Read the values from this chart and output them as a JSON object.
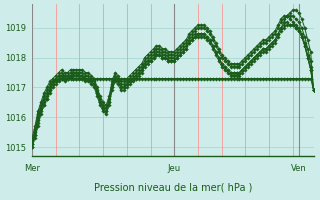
{
  "title": "Pression niveau de la mer( hPa )",
  "bg_color": "#ceecea",
  "grid_color_h": "#aad8d4",
  "grid_color_v": "#ff8888",
  "line_color": "#1a5c1a",
  "marker_color": "#1a5c1a",
  "ylim": [
    1014.7,
    1019.8
  ],
  "yticks": [
    1015,
    1016,
    1017,
    1018,
    1019
  ],
  "xlim": [
    0,
    96
  ],
  "day_positions": [
    0,
    48,
    90
  ],
  "day_labels": [
    "Mer",
    "Jeu",
    "Ven"
  ],
  "series": [
    [
      1015.0,
      1015.3,
      1015.7,
      1016.1,
      1016.4,
      1016.6,
      1016.9,
      1017.1,
      1017.2,
      1017.3,
      1017.3,
      1017.2,
      1017.3,
      1017.35,
      1017.3,
      1017.3,
      1017.3,
      1017.3,
      1017.3,
      1017.3,
      1017.3,
      1017.3,
      1017.3,
      1017.3,
      1017.3,
      1017.3,
      1017.3,
      1017.3,
      1017.3,
      1017.3,
      1017.3,
      1017.3,
      1017.3,
      1017.3,
      1017.3,
      1017.3,
      1017.3,
      1017.3,
      1017.3,
      1017.3,
      1017.3,
      1017.3,
      1017.3,
      1017.3,
      1017.3,
      1017.3,
      1017.3,
      1017.3,
      1017.3,
      1017.3,
      1017.3,
      1017.3,
      1017.3,
      1017.3,
      1017.3,
      1017.3,
      1017.3,
      1017.3,
      1017.3,
      1017.3,
      1017.3,
      1017.3,
      1017.3,
      1017.3,
      1017.3,
      1017.3,
      1017.3,
      1017.3,
      1017.3,
      1017.3,
      1017.3,
      1017.3,
      1017.3,
      1017.3,
      1017.3,
      1017.3,
      1017.3,
      1017.3,
      1017.3,
      1017.3,
      1017.3,
      1017.3,
      1017.3,
      1017.3,
      1017.3,
      1017.3,
      1017.3,
      1017.3,
      1017.3,
      1017.3,
      1017.3,
      1017.3,
      1017.3,
      1017.3,
      1017.3,
      1016.9
    ],
    [
      1015.1,
      1015.5,
      1016.0,
      1016.3,
      1016.6,
      1016.8,
      1017.0,
      1017.2,
      1017.3,
      1017.4,
      1017.4,
      1017.3,
      1017.4,
      1017.4,
      1017.5,
      1017.5,
      1017.4,
      1017.4,
      1017.3,
      1017.3,
      1017.2,
      1017.1,
      1016.8,
      1016.5,
      1016.3,
      1016.2,
      1016.5,
      1017.0,
      1017.3,
      1017.2,
      1017.0,
      1017.0,
      1017.1,
      1017.2,
      1017.3,
      1017.4,
      1017.5,
      1017.6,
      1017.8,
      1017.9,
      1017.9,
      1018.0,
      1018.1,
      1018.1,
      1018.0,
      1018.0,
      1017.9,
      1017.9,
      1017.9,
      1018.0,
      1018.1,
      1018.2,
      1018.3,
      1018.5,
      1018.6,
      1018.7,
      1018.8,
      1018.8,
      1018.8,
      1018.7,
      1018.6,
      1018.4,
      1018.2,
      1018.0,
      1017.8,
      1017.7,
      1017.6,
      1017.5,
      1017.5,
      1017.5,
      1017.5,
      1017.6,
      1017.7,
      1017.8,
      1017.9,
      1018.0,
      1018.1,
      1018.2,
      1018.3,
      1018.3,
      1018.4,
      1018.5,
      1018.6,
      1018.8,
      1019.0,
      1019.2,
      1019.4,
      1019.5,
      1019.6,
      1019.6,
      1019.5,
      1019.3,
      1019.0,
      1018.6,
      1018.2,
      1016.9
    ],
    [
      1015.2,
      1015.6,
      1016.1,
      1016.4,
      1016.7,
      1016.9,
      1017.1,
      1017.2,
      1017.3,
      1017.4,
      1017.5,
      1017.4,
      1017.4,
      1017.5,
      1017.5,
      1017.5,
      1017.5,
      1017.5,
      1017.4,
      1017.4,
      1017.3,
      1017.2,
      1016.9,
      1016.6,
      1016.4,
      1016.3,
      1016.6,
      1017.1,
      1017.4,
      1017.3,
      1017.1,
      1017.1,
      1017.2,
      1017.3,
      1017.4,
      1017.5,
      1017.6,
      1017.7,
      1017.9,
      1018.0,
      1018.1,
      1018.2,
      1018.3,
      1018.3,
      1018.2,
      1018.2,
      1018.1,
      1018.1,
      1018.1,
      1018.2,
      1018.3,
      1018.4,
      1018.5,
      1018.7,
      1018.8,
      1018.9,
      1019.0,
      1019.0,
      1019.0,
      1018.9,
      1018.8,
      1018.6,
      1018.4,
      1018.2,
      1018.0,
      1017.9,
      1017.8,
      1017.7,
      1017.7,
      1017.7,
      1017.7,
      1017.8,
      1017.9,
      1018.0,
      1018.1,
      1018.2,
      1018.3,
      1018.4,
      1018.5,
      1018.5,
      1018.6,
      1018.7,
      1018.8,
      1019.0,
      1019.2,
      1019.3,
      1019.4,
      1019.4,
      1019.4,
      1019.3,
      1019.2,
      1019.0,
      1018.7,
      1018.3,
      1017.9,
      1016.9
    ],
    [
      1015.3,
      1015.7,
      1016.2,
      1016.5,
      1016.8,
      1017.0,
      1017.2,
      1017.3,
      1017.4,
      1017.5,
      1017.6,
      1017.5,
      1017.5,
      1017.6,
      1017.6,
      1017.6,
      1017.6,
      1017.6,
      1017.5,
      1017.5,
      1017.4,
      1017.3,
      1017.0,
      1016.7,
      1016.5,
      1016.4,
      1016.7,
      1017.2,
      1017.5,
      1017.4,
      1017.2,
      1017.2,
      1017.3,
      1017.4,
      1017.5,
      1017.6,
      1017.7,
      1017.8,
      1018.0,
      1018.1,
      1018.2,
      1018.3,
      1018.4,
      1018.4,
      1018.3,
      1018.3,
      1018.2,
      1018.2,
      1018.2,
      1018.3,
      1018.4,
      1018.5,
      1018.6,
      1018.8,
      1018.9,
      1019.0,
      1019.1,
      1019.1,
      1019.1,
      1019.0,
      1018.9,
      1018.7,
      1018.5,
      1018.3,
      1018.1,
      1018.0,
      1017.9,
      1017.8,
      1017.8,
      1017.8,
      1017.8,
      1017.9,
      1018.0,
      1018.1,
      1018.2,
      1018.3,
      1018.4,
      1018.5,
      1018.6,
      1018.6,
      1018.7,
      1018.8,
      1018.9,
      1019.1,
      1019.3,
      1019.4,
      1019.4,
      1019.3,
      1019.2,
      1019.1,
      1019.0,
      1018.8,
      1018.5,
      1018.1,
      1017.7,
      1016.9
    ],
    [
      1015.0,
      1015.4,
      1015.8,
      1016.2,
      1016.4,
      1016.6,
      1016.8,
      1017.0,
      1017.1,
      1017.2,
      1017.3,
      1017.3,
      1017.3,
      1017.3,
      1017.3,
      1017.3,
      1017.3,
      1017.3,
      1017.2,
      1017.2,
      1017.1,
      1017.0,
      1016.7,
      1016.4,
      1016.2,
      1016.1,
      1016.4,
      1016.9,
      1017.2,
      1017.1,
      1016.9,
      1016.9,
      1017.0,
      1017.1,
      1017.2,
      1017.3,
      1017.4,
      1017.5,
      1017.7,
      1017.8,
      1017.9,
      1018.0,
      1018.1,
      1018.1,
      1018.0,
      1018.0,
      1017.9,
      1017.9,
      1017.9,
      1018.0,
      1018.1,
      1018.2,
      1018.3,
      1018.5,
      1018.6,
      1018.7,
      1018.7,
      1018.7,
      1018.7,
      1018.6,
      1018.5,
      1018.3,
      1018.1,
      1017.9,
      1017.7,
      1017.6,
      1017.5,
      1017.4,
      1017.4,
      1017.4,
      1017.4,
      1017.5,
      1017.6,
      1017.7,
      1017.8,
      1017.9,
      1018.0,
      1018.1,
      1018.2,
      1018.2,
      1018.3,
      1018.4,
      1018.5,
      1018.7,
      1018.9,
      1019.0,
      1019.1,
      1019.1,
      1019.1,
      1019.0,
      1018.9,
      1018.7,
      1018.4,
      1018.0,
      1017.6,
      1016.9
    ],
    [
      1015.1,
      1015.4,
      1015.9,
      1016.3,
      1016.5,
      1016.7,
      1016.9,
      1017.1,
      1017.2,
      1017.3,
      1017.4,
      1017.4,
      1017.4,
      1017.4,
      1017.4,
      1017.4,
      1017.4,
      1017.4,
      1017.3,
      1017.3,
      1017.2,
      1017.1,
      1016.8,
      1016.5,
      1016.3,
      1016.2,
      1016.5,
      1017.0,
      1017.3,
      1017.2,
      1017.0,
      1017.0,
      1017.1,
      1017.2,
      1017.3,
      1017.4,
      1017.5,
      1017.6,
      1017.8,
      1017.9,
      1018.0,
      1018.1,
      1018.2,
      1018.2,
      1018.1,
      1018.1,
      1018.0,
      1018.0,
      1018.0,
      1018.1,
      1018.2,
      1018.3,
      1018.4,
      1018.6,
      1018.7,
      1018.8,
      1018.8,
      1018.8,
      1018.8,
      1018.7,
      1018.6,
      1018.4,
      1018.2,
      1018.0,
      1017.8,
      1017.7,
      1017.6,
      1017.5,
      1017.5,
      1017.5,
      1017.5,
      1017.6,
      1017.7,
      1017.8,
      1017.9,
      1018.0,
      1018.1,
      1018.2,
      1018.3,
      1018.3,
      1018.4,
      1018.5,
      1018.6,
      1018.8,
      1019.0,
      1019.1,
      1019.2,
      1019.1,
      1019.1,
      1019.0,
      1018.9,
      1018.7,
      1018.4,
      1018.0,
      1017.6,
      1016.9
    ]
  ]
}
